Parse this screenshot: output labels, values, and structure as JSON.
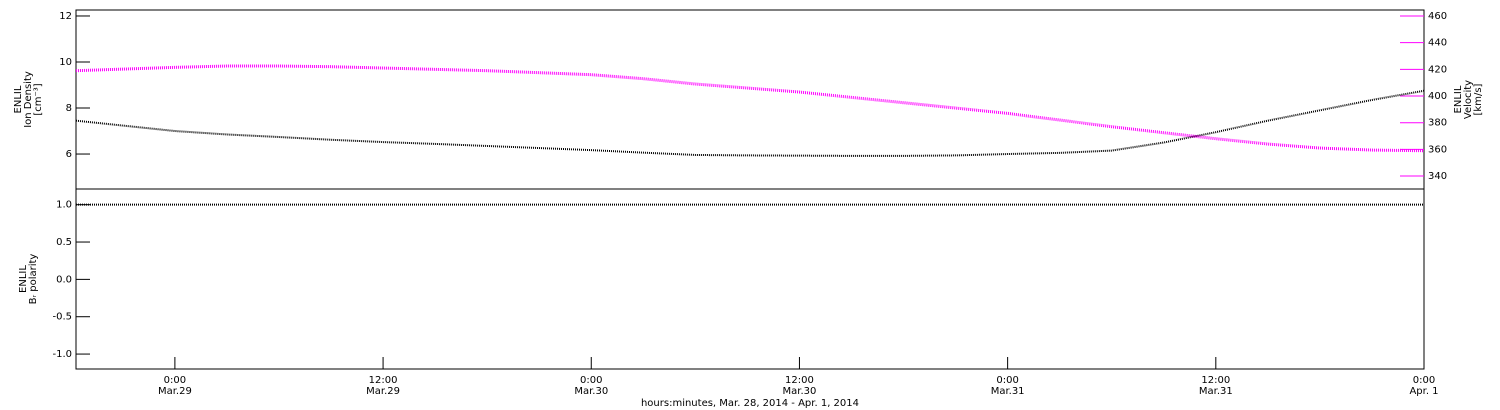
{
  "chart_data": [
    {
      "type": "line",
      "xlim": [
        -5.7,
        72
      ],
      "ylim": [
        4.48,
        12.26
      ],
      "yticks": [
        12,
        10,
        8,
        6
      ],
      "ylabel": [
        "ENLIL",
        "Ion Density",
        "[cm⁻³]"
      ],
      "y2lim": [
        330.3,
        464.5
      ],
      "y2ticks": [
        460,
        440,
        420,
        400,
        380,
        360,
        340
      ],
      "y2label": [
        "ENLIL",
        "Velocity",
        "[km/s]"
      ],
      "y2color": "#ff00ff",
      "x": [
        -5.7,
        0,
        3,
        6,
        9,
        12,
        15,
        18,
        21,
        24,
        27,
        30,
        33,
        36,
        39,
        42,
        45,
        48,
        51,
        54,
        57,
        60,
        63,
        66,
        69,
        72
      ],
      "series": [
        {
          "name": "Ion Density",
          "color": "#000000",
          "values": [
            7.45,
            7.0,
            6.85,
            6.74,
            6.62,
            6.52,
            6.44,
            6.35,
            6.26,
            6.17,
            6.06,
            5.96,
            5.94,
            5.93,
            5.92,
            5.92,
            5.94,
            6.0,
            6.05,
            6.15,
            6.5,
            6.95,
            7.45,
            7.9,
            8.35,
            8.75
          ]
        },
        {
          "name": "Velocity",
          "color": "#ff00ff",
          "axis": "y2",
          "values": [
            419,
            421.5,
            422.5,
            422.5,
            422,
            421,
            420,
            419,
            417.5,
            416,
            413,
            409,
            406,
            403,
            399,
            395,
            391,
            387,
            382,
            377,
            372.5,
            368,
            364,
            361,
            359.5,
            359
          ]
        }
      ]
    },
    {
      "type": "line",
      "xlim": [
        -5.7,
        72
      ],
      "xticks": [
        {
          "value": 0,
          "label": "0:00\nMar.29"
        },
        {
          "value": 12,
          "label": "12:00\nMar.29"
        },
        {
          "value": 24,
          "label": "0:00\nMar.30"
        },
        {
          "value": 36,
          "label": "12:00\nMar.30"
        },
        {
          "value": 48,
          "label": "0:00\nMar.31"
        },
        {
          "value": 60,
          "label": "12:00\nMar.31"
        },
        {
          "value": 72,
          "label": "0:00\nApr. 1"
        }
      ],
      "xlabel": "hours:minutes, Mar. 28, 2014 - Apr.  1, 2014",
      "ylim": [
        -1.2,
        1.21
      ],
      "yticks": [
        {
          "value": 1,
          "label": "1.0"
        },
        0.5,
        {
          "value": 0,
          "label": "0.0"
        },
        -0.5,
        {
          "value": -1,
          "label": "-1.0"
        }
      ],
      "ylabel": [
        "ENLIL",
        "Bᵣ polarity"
      ],
      "x": [
        -5.7,
        72
      ],
      "series": [
        {
          "name": "Br polarity",
          "color": "#000000",
          "values": [
            1,
            1
          ]
        }
      ]
    }
  ]
}
